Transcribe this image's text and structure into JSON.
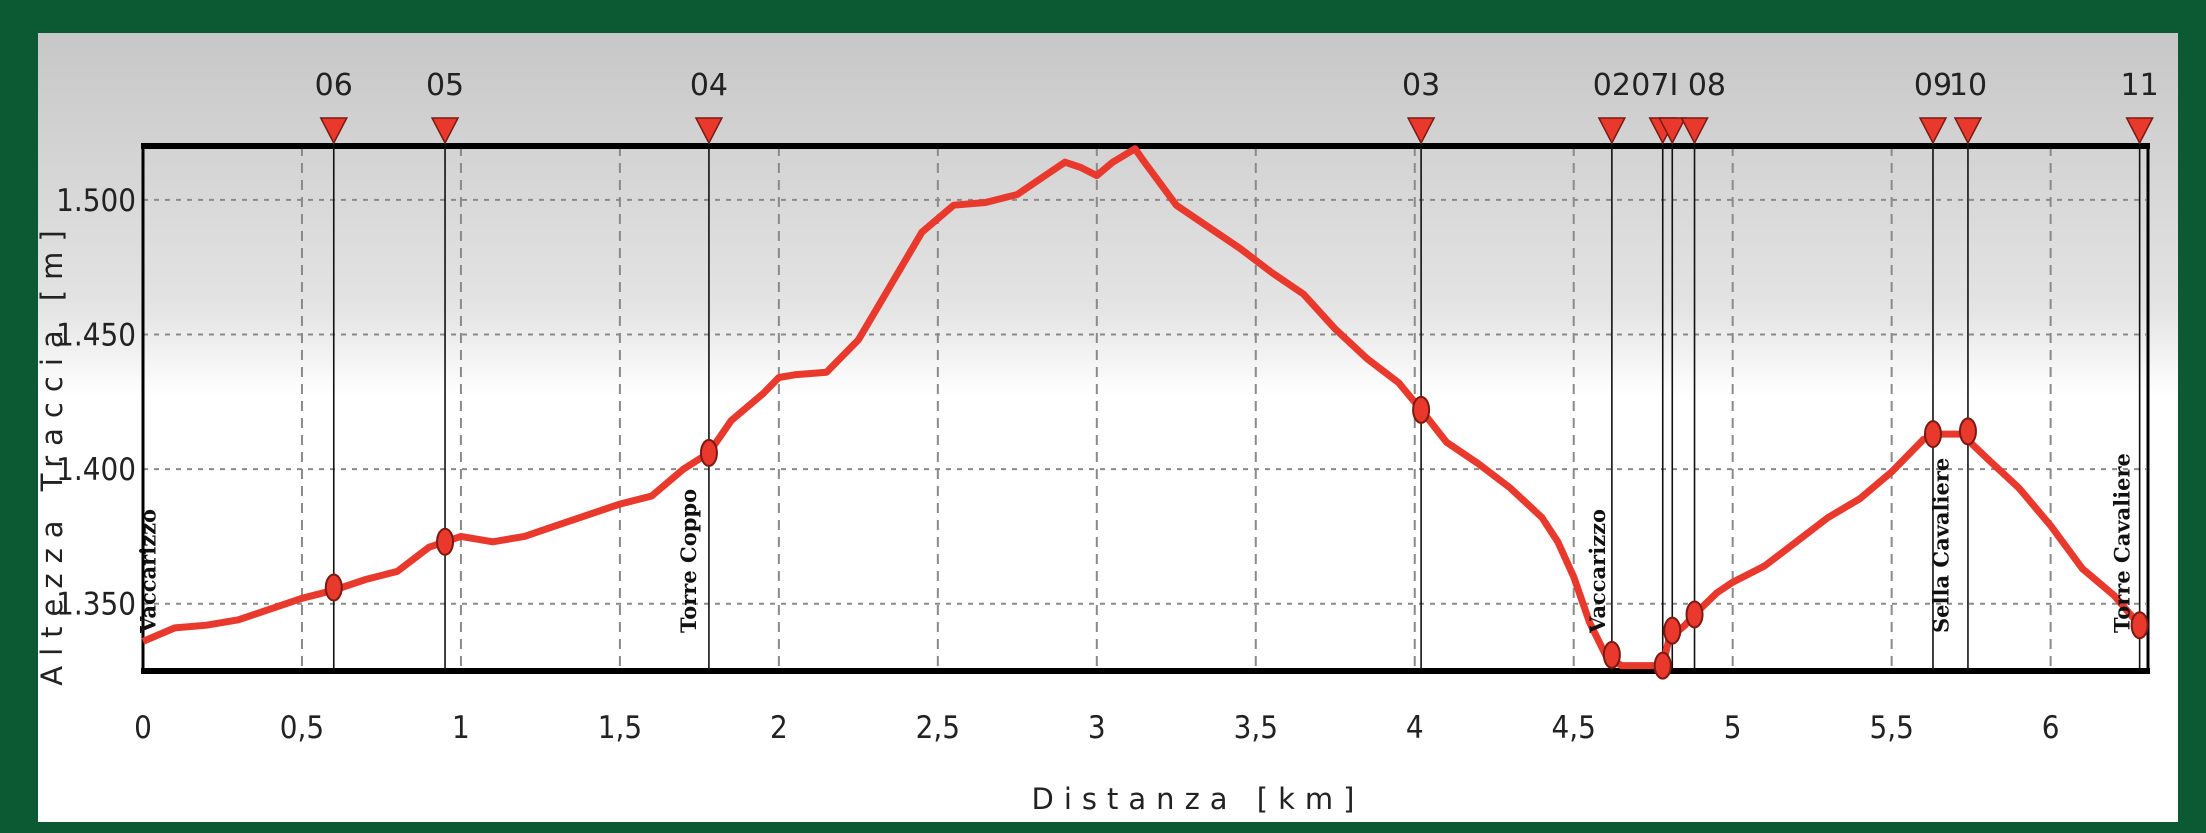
{
  "chart_data": {
    "type": "line",
    "title": "",
    "xlabel": "Distanza [km]",
    "ylabel": "Altezza Traccia [m]",
    "xlim": [
      0,
      6.3
    ],
    "ylim": [
      1325,
      1520
    ],
    "x_ticks": [
      0,
      0.5,
      1,
      1.5,
      2,
      2.5,
      3,
      3.5,
      4,
      4.5,
      5,
      5.5,
      6
    ],
    "x_tick_labels": [
      "0",
      "0,5",
      "1",
      "1,5",
      "2",
      "2,5",
      "3",
      "3,5",
      "4",
      "4,5",
      "5",
      "5,5",
      "6"
    ],
    "y_ticks": [
      1350,
      1400,
      1450,
      1500
    ],
    "y_tick_labels": [
      "1.350",
      "1.400",
      "1.450",
      "1.500"
    ],
    "grid": true,
    "line_color": "#e8392c",
    "series": [
      {
        "x": [
          0,
          0.1,
          0.2,
          0.3,
          0.4,
          0.5,
          0.6,
          0.7,
          0.8,
          0.9,
          0.95,
          1.0,
          1.1,
          1.2,
          1.3,
          1.4,
          1.5,
          1.6,
          1.7,
          1.78,
          1.85,
          1.95,
          2.0,
          2.05,
          2.15,
          2.25,
          2.35,
          2.45,
          2.55,
          2.65,
          2.75,
          2.85,
          2.9,
          2.95,
          3.0,
          3.05,
          3.12,
          3.15,
          3.25,
          3.35,
          3.45,
          3.55,
          3.65,
          3.75,
          3.85,
          3.95,
          4.02,
          4.1,
          4.2,
          4.3,
          4.4,
          4.45,
          4.5,
          4.55,
          4.6,
          4.65,
          4.7,
          4.78,
          4.8,
          4.85,
          4.88,
          4.95,
          5.0,
          5.1,
          5.2,
          5.3,
          5.4,
          5.5,
          5.6,
          5.65,
          5.72,
          5.8,
          5.9,
          6.0,
          6.1,
          6.2,
          6.28
        ],
        "y": [
          1336,
          1341,
          1342,
          1344,
          1348,
          1352,
          1355,
          1359,
          1362,
          1371,
          1373,
          1375,
          1373,
          1375,
          1379,
          1383,
          1387,
          1390,
          1400,
          1406,
          1418,
          1428,
          1434,
          1435,
          1436,
          1448,
          1468,
          1488,
          1498,
          1499,
          1502,
          1510,
          1514,
          1512,
          1509,
          1514,
          1519,
          1514,
          1498,
          1490,
          1482,
          1473,
          1465,
          1452,
          1441,
          1432,
          1422,
          1410,
          1402,
          1393,
          1382,
          1373,
          1360,
          1343,
          1331,
          1327,
          1327,
          1327,
          1337,
          1342,
          1346,
          1354,
          1358,
          1364,
          1373,
          1382,
          1389,
          1399,
          1411,
          1413,
          1413,
          1404,
          1393,
          1379,
          1363,
          1353,
          1342
        ]
      }
    ],
    "waypoints": [
      {
        "label": "06",
        "x": 0.6,
        "y": 1356
      },
      {
        "label": "05",
        "x": 0.95,
        "y": 1373
      },
      {
        "label": "04",
        "x": 1.78,
        "y": 1406
      },
      {
        "label": "03",
        "x": 4.02,
        "y": 1422
      },
      {
        "label": "02",
        "x": 4.62,
        "y": 1331
      },
      {
        "label": "07",
        "x": 4.78,
        "y": 1327
      },
      {
        "label": "01",
        "x": 4.81,
        "y": 1340
      },
      {
        "label": "08",
        "x": 4.88,
        "y": 1346
      },
      {
        "label": "09",
        "x": 5.63,
        "y": 1413
      },
      {
        "label": "10",
        "x": 5.74,
        "y": 1414
      },
      {
        "label": "11",
        "x": 6.28,
        "y": 1342
      }
    ],
    "waypoint_header": "07I 08",
    "place_labels": [
      {
        "text": "Vaccarizzo",
        "x": 0.02
      },
      {
        "text": "Torre Coppo",
        "x": 1.72
      },
      {
        "text": "Vaccarizzo",
        "x": 4.58
      },
      {
        "text": "Sella Cavaliere",
        "x": 5.66
      },
      {
        "text": "Torre Cavaliere",
        "x": 6.23
      }
    ]
  }
}
